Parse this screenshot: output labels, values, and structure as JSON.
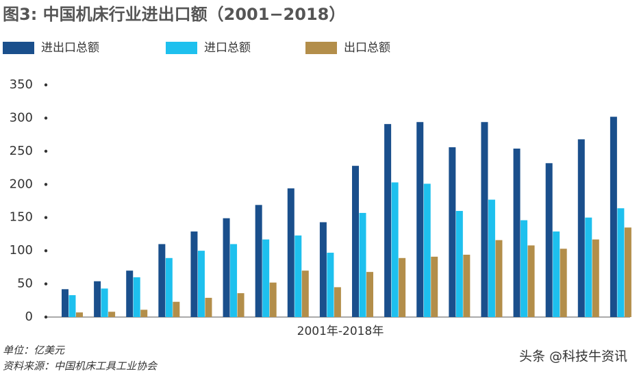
{
  "chart_data": {
    "type": "bar",
    "title": "图3: 中国机床行业进出口额（2001−2018）",
    "xlabel": "2001年-2018年",
    "categories": [
      null,
      null,
      null,
      null,
      null,
      null,
      null,
      null,
      null,
      null,
      null,
      null,
      null,
      null,
      null,
      null,
      null,
      null
    ],
    "series": [
      {
        "name": "进出口总额",
        "color": "#1a4f8c",
        "values": [
          42,
          54,
          70,
          110,
          129,
          149,
          169,
          194,
          143,
          228,
          291,
          294,
          256,
          294,
          254,
          232,
          268,
          302
        ]
      },
      {
        "name": "进口总额",
        "color": "#1ec0ee",
        "values": [
          33,
          43,
          60,
          89,
          100,
          110,
          117,
          123,
          97,
          157,
          203,
          201,
          160,
          177,
          146,
          129,
          150,
          164
        ]
      },
      {
        "name": "出口总额",
        "color": "#b38e4a",
        "values": [
          7,
          8,
          11,
          23,
          29,
          36,
          52,
          70,
          45,
          68,
          89,
          91,
          94,
          116,
          108,
          103,
          117,
          135
        ]
      }
    ],
    "ylim": [
      0,
      350
    ],
    "yticks": [
      0,
      50,
      100,
      150,
      200,
      250,
      300,
      350
    ],
    "grid": false
  },
  "notes": {
    "unit": "单位：亿美元",
    "source": "资料来源：中国机床工具工业协会",
    "watermark": "头条 @科技牛资讯"
  }
}
